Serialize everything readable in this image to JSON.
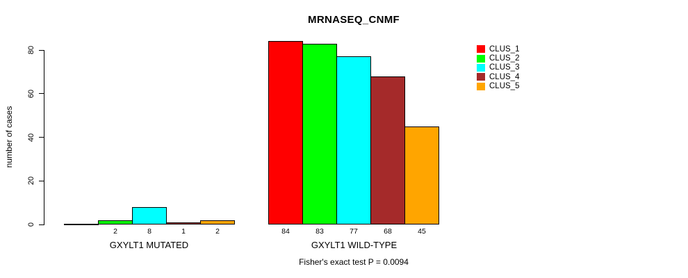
{
  "chart_data": {
    "type": "bar",
    "title": "MRNASEQ_CNMF",
    "xlabel": "",
    "ylabel": "number of cases",
    "categories": [
      "GXYLT1 MUTATED",
      "GXYLT1 WILD-TYPE"
    ],
    "series": [
      {
        "name": "CLUS_1",
        "color": "#FF0000",
        "values": [
          0,
          84
        ]
      },
      {
        "name": "CLUS_2",
        "color": "#00FF00",
        "values": [
          2,
          83
        ]
      },
      {
        "name": "CLUS_3",
        "color": "#00FFFF",
        "values": [
          8,
          77
        ]
      },
      {
        "name": "CLUS_4",
        "color": "#A52A2A",
        "values": [
          1,
          68
        ]
      },
      {
        "name": "CLUS_5",
        "color": "#FFA500",
        "values": [
          2,
          45
        ]
      }
    ],
    "ylim": [
      0,
      80
    ],
    "yticks": [
      0,
      20,
      40,
      60,
      80
    ],
    "grid": false,
    "legend_position": "top-right",
    "bar_value_labels_shown": true,
    "zero_value_labels_hidden": true,
    "annotation": "Fisher's exact test P = 0.0094"
  },
  "colors": {
    "axis": "#000000",
    "background": "#FFFFFF",
    "text": "#000000"
  }
}
